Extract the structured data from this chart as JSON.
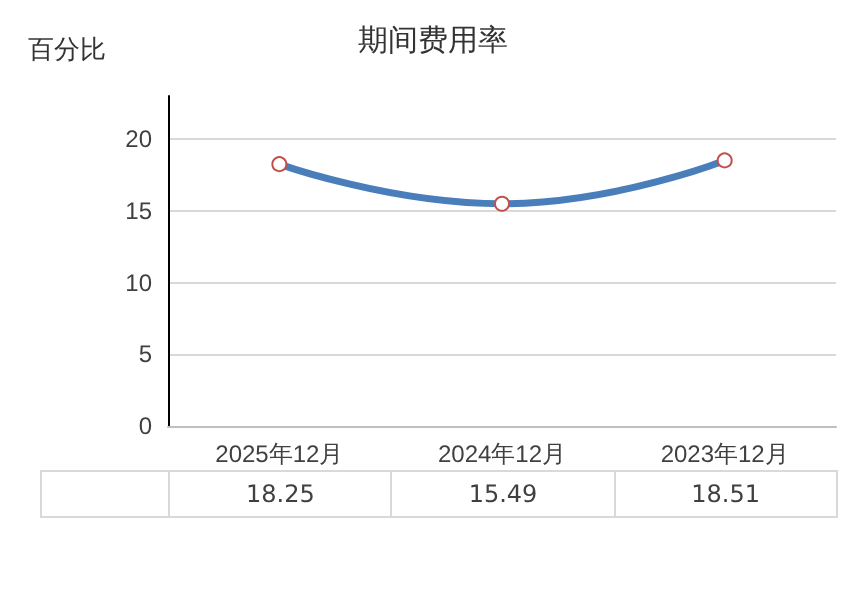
{
  "chart_data": {
    "type": "line",
    "title": "期间费用率",
    "ylabel": "百分比",
    "categories": [
      "2025年12月",
      "2024年12月",
      "2023年12月"
    ],
    "series": [
      {
        "color": "#4a7ebb",
        "values": [
          18.25,
          15.49,
          18.51
        ]
      }
    ],
    "ylim": [
      0,
      23
    ],
    "yticks": [
      0,
      5,
      10,
      15,
      20
    ],
    "grid": "y",
    "marker": "circle",
    "line_style": "solid",
    "data_labels": true
  }
}
